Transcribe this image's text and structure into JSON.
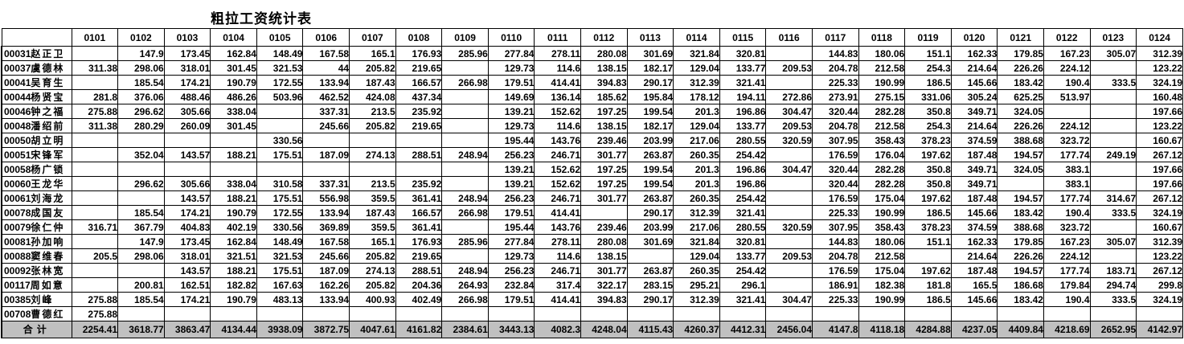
{
  "title": "粗拉工资统计表",
  "colors": {
    "total_row_bg": "#c0c0c0",
    "grid": "#000000",
    "text": "#000000"
  },
  "table": {
    "columns": [
      "0101",
      "0102",
      "0103",
      "0104",
      "0105",
      "0106",
      "0107",
      "0108",
      "0109",
      "0110",
      "0111",
      "0112",
      "0113",
      "0114",
      "0115",
      "0116",
      "0117",
      "0118",
      "0119",
      "0120",
      "0121",
      "0122",
      "0123",
      "0124"
    ],
    "rows": [
      {
        "id": "00031",
        "name": "赵正卫",
        "values": [
          "",
          "147.9",
          "173.45",
          "162.84",
          "148.49",
          "167.58",
          "165.1",
          "176.93",
          "285.96",
          "277.84",
          "278.11",
          "280.08",
          "301.69",
          "321.84",
          "320.81",
          "",
          "144.83",
          "180.06",
          "151.1",
          "162.33",
          "179.85",
          "167.23",
          "305.07",
          "312.39"
        ]
      },
      {
        "id": "00037",
        "name": "虞德林",
        "values": [
          "311.38",
          "298.06",
          "318.01",
          "301.45",
          "321.53",
          "44",
          "205.82",
          "219.65",
          "",
          "129.73",
          "114.6",
          "138.15",
          "182.17",
          "129.04",
          "133.77",
          "209.53",
          "204.78",
          "212.58",
          "254.3",
          "214.64",
          "226.26",
          "224.12",
          "",
          "123.22"
        ]
      },
      {
        "id": "00041",
        "name": "吴育生",
        "values": [
          "",
          "185.54",
          "174.21",
          "190.79",
          "172.55",
          "133.94",
          "187.43",
          "166.57",
          "266.98",
          "179.51",
          "414.41",
          "394.83",
          "290.17",
          "312.39",
          "321.41",
          "",
          "225.33",
          "190.99",
          "186.5",
          "145.66",
          "183.42",
          "190.4",
          "333.5",
          "324.19"
        ]
      },
      {
        "id": "00044",
        "name": "杨贤宝",
        "values": [
          "281.8",
          "376.06",
          "488.46",
          "486.26",
          "503.96",
          "462.52",
          "424.08",
          "437.34",
          "",
          "149.69",
          "136.14",
          "185.62",
          "195.84",
          "178.12",
          "194.11",
          "272.86",
          "273.91",
          "275.15",
          "331.06",
          "305.24",
          "625.25",
          "513.97",
          "",
          "160.48"
        ]
      },
      {
        "id": "00046",
        "name": "钟之福",
        "values": [
          "275.88",
          "296.62",
          "305.66",
          "338.04",
          "",
          "337.31",
          "213.5",
          "235.92",
          "",
          "139.21",
          "152.62",
          "197.25",
          "199.54",
          "201.3",
          "196.86",
          "304.47",
          "320.44",
          "282.28",
          "350.8",
          "349.71",
          "324.05",
          "",
          "",
          "197.66"
        ]
      },
      {
        "id": "00048",
        "name": "潘绍前",
        "values": [
          "311.38",
          "280.29",
          "260.09",
          "301.45",
          "",
          "245.66",
          "205.82",
          "219.65",
          "",
          "129.73",
          "114.6",
          "138.15",
          "182.17",
          "129.04",
          "133.77",
          "209.53",
          "204.78",
          "212.58",
          "254.3",
          "214.64",
          "226.26",
          "224.12",
          "",
          "123.22"
        ]
      },
      {
        "id": "00050",
        "name": "胡立明",
        "values": [
          "",
          "",
          "",
          "",
          "330.56",
          "",
          "",
          "",
          "",
          "195.44",
          "143.76",
          "239.46",
          "203.99",
          "217.06",
          "280.55",
          "320.59",
          "307.95",
          "358.43",
          "378.23",
          "374.59",
          "388.68",
          "323.72",
          "",
          "160.67"
        ]
      },
      {
        "id": "00051",
        "name": "宋锋军",
        "values": [
          "",
          "352.04",
          "143.57",
          "188.21",
          "175.51",
          "187.09",
          "274.13",
          "288.51",
          "248.94",
          "256.23",
          "246.71",
          "301.77",
          "263.87",
          "260.35",
          "254.42",
          "",
          "176.59",
          "176.04",
          "197.62",
          "187.48",
          "194.57",
          "177.74",
          "249.19",
          "267.12"
        ]
      },
      {
        "id": "00058",
        "name": "杨广锁",
        "values": [
          "",
          "",
          "",
          "",
          "",
          "",
          "",
          "",
          "",
          "139.21",
          "152.62",
          "197.25",
          "199.54",
          "201.3",
          "196.86",
          "304.47",
          "320.44",
          "282.28",
          "350.8",
          "349.71",
          "324.05",
          "383.1",
          "",
          "197.66"
        ]
      },
      {
        "id": "00060",
        "name": "王龙华",
        "values": [
          "",
          "296.62",
          "305.66",
          "338.04",
          "310.58",
          "337.31",
          "213.5",
          "235.92",
          "",
          "139.21",
          "152.62",
          "197.25",
          "199.54",
          "201.3",
          "196.86",
          "",
          "320.44",
          "282.28",
          "350.8",
          "349.71",
          "",
          "383.1",
          "",
          "197.66"
        ]
      },
      {
        "id": "00061",
        "name": "刘海龙",
        "values": [
          "",
          "",
          "143.57",
          "188.21",
          "175.51",
          "556.98",
          "359.5",
          "361.41",
          "248.94",
          "256.23",
          "246.71",
          "301.77",
          "263.87",
          "260.35",
          "254.42",
          "",
          "176.59",
          "175.04",
          "197.62",
          "187.48",
          "194.57",
          "177.74",
          "314.67",
          "267.12"
        ]
      },
      {
        "id": "00078",
        "name": "成国友",
        "values": [
          "",
          "185.54",
          "174.21",
          "190.79",
          "172.55",
          "133.94",
          "187.43",
          "166.57",
          "266.98",
          "179.51",
          "414.41",
          "",
          "290.17",
          "312.39",
          "321.41",
          "",
          "225.33",
          "190.99",
          "186.5",
          "145.66",
          "183.42",
          "190.4",
          "333.5",
          "324.19"
        ]
      },
      {
        "id": "00079",
        "name": "徐仁仲",
        "values": [
          "316.71",
          "367.79",
          "404.83",
          "402.19",
          "330.56",
          "369.89",
          "359.5",
          "361.41",
          "",
          "195.44",
          "143.76",
          "239.46",
          "203.99",
          "217.06",
          "280.55",
          "320.59",
          "307.95",
          "358.43",
          "378.23",
          "374.59",
          "388.68",
          "323.72",
          "",
          "160.67"
        ]
      },
      {
        "id": "00081",
        "name": "孙加响",
        "values": [
          "",
          "147.9",
          "173.45",
          "162.84",
          "148.49",
          "167.58",
          "165.1",
          "176.93",
          "285.96",
          "277.84",
          "278.11",
          "280.08",
          "301.69",
          "321.84",
          "320.81",
          "",
          "144.83",
          "180.06",
          "151.1",
          "162.33",
          "179.85",
          "167.23",
          "305.07",
          "312.39"
        ]
      },
      {
        "id": "00088",
        "name": "窦维春",
        "values": [
          "205.5",
          "298.06",
          "318.01",
          "321.51",
          "321.53",
          "245.66",
          "205.82",
          "219.65",
          "",
          "129.73",
          "114.6",
          "138.15",
          "",
          "129.04",
          "133.77",
          "209.53",
          "204.78",
          "212.58",
          "",
          "214.64",
          "226.26",
          "224.12",
          "",
          "123.22"
        ]
      },
      {
        "id": "00092",
        "name": "张林宽",
        "values": [
          "",
          "",
          "143.57",
          "188.21",
          "175.51",
          "187.09",
          "274.13",
          "288.51",
          "248.94",
          "256.23",
          "246.71",
          "301.77",
          "263.87",
          "260.35",
          "254.42",
          "",
          "176.59",
          "175.04",
          "197.62",
          "187.48",
          "194.57",
          "177.74",
          "183.71",
          "267.12"
        ]
      },
      {
        "id": "00117",
        "name": "周如意",
        "values": [
          "",
          "200.81",
          "162.51",
          "182.82",
          "167.63",
          "162.26",
          "205.82",
          "204.36",
          "264.93",
          "232.84",
          "317.4",
          "322.17",
          "283.15",
          "295.21",
          "296.1",
          "",
          "186.91",
          "182.38",
          "181.8",
          "165.5",
          "186.68",
          "179.84",
          "294.74",
          "299.8"
        ]
      },
      {
        "id": "00385",
        "name": "刘峰",
        "values": [
          "275.88",
          "185.54",
          "174.21",
          "190.79",
          "483.13",
          "133.94",
          "400.93",
          "402.49",
          "266.98",
          "179.51",
          "414.41",
          "394.83",
          "290.17",
          "312.39",
          "321.41",
          "304.47",
          "225.33",
          "190.99",
          "186.5",
          "145.66",
          "183.42",
          "190.4",
          "333.5",
          "324.19"
        ]
      },
      {
        "id": "00708",
        "name": "曹德红",
        "values": [
          "275.88",
          "",
          "",
          "",
          "",
          "",
          "",
          "",
          "",
          "",
          "",
          "",
          "",
          "",
          "",
          "",
          "",
          "",
          "",
          "",
          "",
          "",
          "",
          ""
        ]
      }
    ],
    "total": {
      "label": "合计",
      "values": [
        "2254.41",
        "3618.77",
        "3863.47",
        "4134.44",
        "3938.09",
        "3872.75",
        "4047.61",
        "4161.82",
        "2384.61",
        "3443.13",
        "4082.3",
        "4248.04",
        "4115.43",
        "4260.37",
        "4412.31",
        "2456.04",
        "4147.8",
        "4118.18",
        "4284.88",
        "4237.05",
        "4409.84",
        "4218.69",
        "2652.95",
        "4142.97"
      ]
    }
  }
}
